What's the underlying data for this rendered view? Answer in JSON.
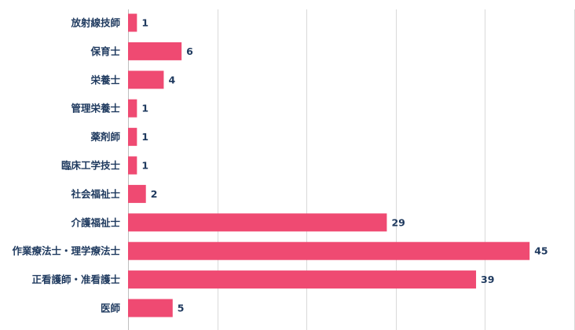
{
  "chart_data": {
    "type": "bar",
    "orientation": "horizontal",
    "categories": [
      "放射線技師",
      "保育士",
      "栄養士",
      "管理栄養士",
      "薬剤師",
      "臨床工学技士",
      "社会福祉士",
      "介護福祉士",
      "作業療法士・理学療法士",
      "正看護師・准看護士",
      "医師"
    ],
    "values": [
      1,
      6,
      4,
      1,
      1,
      1,
      2,
      29,
      45,
      39,
      5
    ],
    "xlim": [
      0,
      50
    ],
    "grid": true,
    "bar_color": "#ef4a72",
    "label_color": "#1f3a5f",
    "data_labels": true
  }
}
